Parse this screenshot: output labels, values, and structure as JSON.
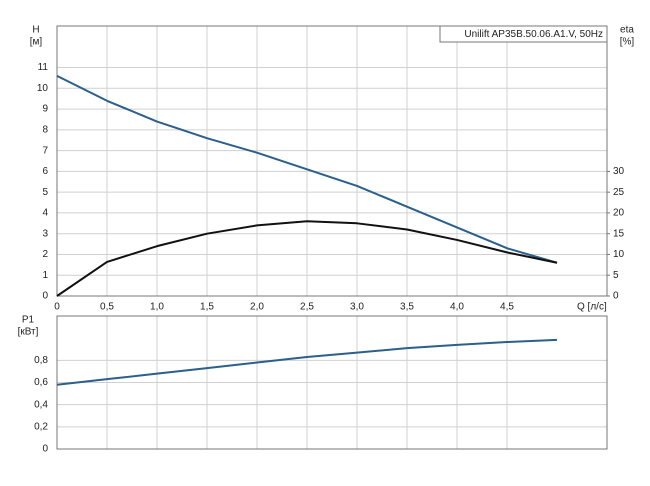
{
  "chart_data": [
    {
      "type": "line",
      "title": "Unilift AP35B.50.06.A1.V, 50Hz",
      "ylabel": [
        "H",
        "[м]"
      ],
      "y2label": [
        "eta",
        "[%]"
      ],
      "xlabel": "Q [л/с]",
      "x": [
        0,
        0.5,
        1.0,
        1.5,
        2.0,
        2.5,
        3.0,
        3.5,
        4.0,
        4.5,
        5.0
      ],
      "series": [
        {
          "name": "H",
          "color": "#2b5f8c",
          "values": [
            10.6,
            9.4,
            8.4,
            7.6,
            6.9,
            6.1,
            5.3,
            4.3,
            3.3,
            2.3,
            1.6
          ]
        },
        {
          "name": "eta",
          "color": "#111111",
          "axis": "y2",
          "values": [
            0,
            8.2,
            12,
            15,
            17,
            18,
            17.5,
            16,
            13.5,
            10.5,
            8
          ]
        }
      ],
      "xlim": [
        0,
        5.5
      ],
      "xticks": [
        0,
        {
          "value": 0.5,
          "label": "0,5"
        },
        {
          "value": 1.0,
          "label": "1,0"
        },
        {
          "value": 1.5,
          "label": "1,5"
        },
        {
          "value": 2.0,
          "label": "2,0"
        },
        {
          "value": 2.5,
          "label": "2,5"
        },
        {
          "value": 3.0,
          "label": "3,0"
        },
        {
          "value": 3.5,
          "label": "3,5"
        },
        {
          "value": 4.0,
          "label": "4,0"
        },
        {
          "value": 4.5,
          "label": "4,5"
        }
      ],
      "ylim": [
        0,
        13
      ],
      "yticks": [
        0,
        1,
        2,
        3,
        4,
        5,
        6,
        7,
        8,
        9,
        10,
        11
      ],
      "y2lim": [
        0,
        65
      ],
      "y2ticks": [
        0,
        5,
        10,
        15,
        20,
        25,
        30
      ],
      "grid": true
    },
    {
      "type": "line",
      "ylabel": [
        "P1",
        "[кВт]"
      ],
      "x": [
        0,
        0.5,
        1.0,
        1.5,
        2.0,
        2.5,
        3.0,
        3.5,
        4.0,
        4.5,
        5.0
      ],
      "series": [
        {
          "name": "P1",
          "color": "#2b5f8c",
          "values": [
            0.58,
            0.63,
            0.68,
            0.73,
            0.78,
            0.83,
            0.87,
            0.91,
            0.94,
            0.965,
            0.985
          ]
        }
      ],
      "xlim": [
        0,
        5.5
      ],
      "ylim": [
        0,
        1.2
      ],
      "yticks": [
        0,
        {
          "value": 0.2,
          "label": "0,2"
        },
        {
          "value": 0.4,
          "label": "0,4"
        },
        {
          "value": 0.6,
          "label": "0,6"
        },
        {
          "value": 0.8,
          "label": "0,8"
        }
      ],
      "grid": true
    }
  ]
}
